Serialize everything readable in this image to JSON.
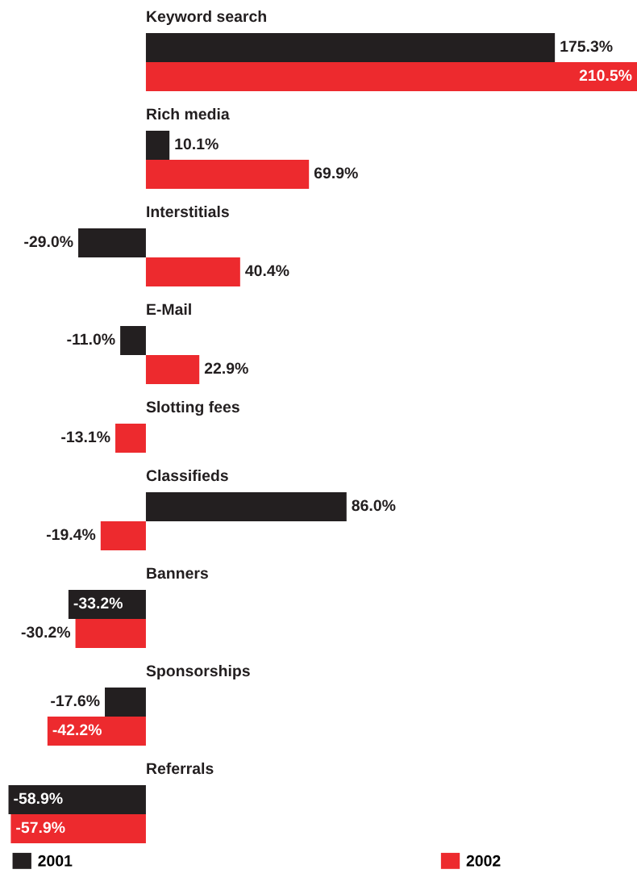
{
  "chart_data": {
    "type": "bar",
    "orientation": "horizontal",
    "categories": [
      "Keyword search",
      "Rich media",
      "Interstitials",
      "E-Mail",
      "Slotting fees",
      "Classifieds",
      "Banners",
      "Sponsorships",
      "Referrals"
    ],
    "series": [
      {
        "name": "2001",
        "color": "#231f20",
        "values": [
          175.3,
          10.1,
          -29.0,
          -11.0,
          null,
          86.0,
          -33.2,
          -17.6,
          -58.9
        ],
        "value_labels": [
          "175.3%",
          "10.1%",
          "-29.0%",
          "-11.0%",
          null,
          "86.0%",
          "-33.2%",
          "-17.6%",
          "-58.9%"
        ]
      },
      {
        "name": "2002",
        "color": "#ed2a2e",
        "values": [
          210.5,
          69.9,
          40.4,
          22.9,
          -13.1,
          -19.4,
          -30.2,
          -42.2,
          -57.9
        ],
        "value_labels": [
          "210.5%",
          "69.9%",
          "40.4%",
          "22.9%",
          "-13.1%",
          "-19.4%",
          "-30.2%",
          "-42.2%",
          "-57.9%"
        ]
      }
    ],
    "legend": "bottom"
  }
}
